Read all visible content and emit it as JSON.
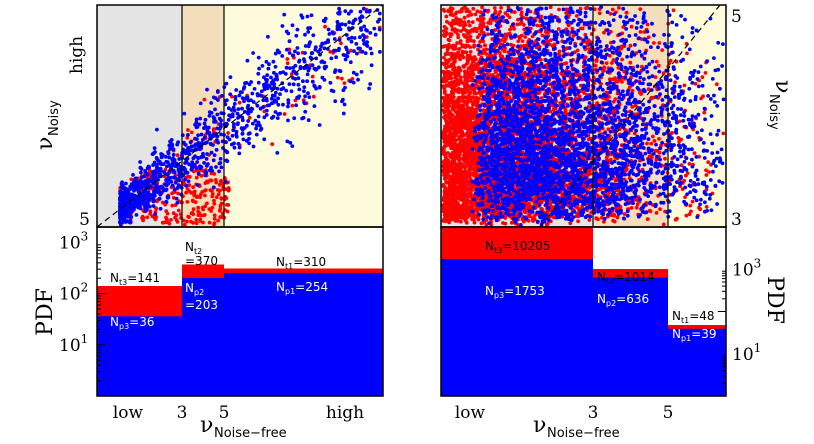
{
  "colors": {
    "bg_low": "#e5e5e5",
    "bg_mid": "#f5debb",
    "bg_high": "#fefbdd",
    "total": "#ff0000",
    "pass": "#0000ff",
    "frame": "#000000"
  },
  "chart_data": [
    {
      "type": "scatter",
      "panel": "top-left",
      "xlim": [
        "low",
        "high"
      ],
      "y_ticks": [
        {
          "label": "5"
        },
        {
          "label": "high"
        }
      ],
      "ylabel": {
        "main": "ν",
        "sub": "Noisy"
      },
      "regions": [
        {
          "name": "ν<3",
          "color": "#e5e5e5"
        },
        {
          "name": "3-5",
          "color": "#f5debb"
        },
        {
          "name": "ν>5",
          "color": "#fefbdd"
        }
      ],
      "x_breaks": [
        3,
        5
      ],
      "diagonal": "dashed",
      "series": [
        {
          "color": "#ff0000",
          "count": 370
        },
        {
          "color": "#0000ff",
          "count": 1100
        }
      ]
    },
    {
      "type": "scatter",
      "panel": "top-right",
      "y_ticks": [
        {
          "label": "3"
        },
        {
          "label": "5"
        }
      ],
      "ylabel": {
        "main": "ν",
        "sub": "Noisy"
      },
      "x_breaks": [
        3,
        5
      ],
      "diagonal": "dashed",
      "series": [
        {
          "color": "#ff0000",
          "count": 5200
        },
        {
          "color": "#0000ff",
          "count": 3400
        }
      ]
    },
    {
      "type": "bar",
      "panel": "bottom-left",
      "xlabel": {
        "main": "ν",
        "sub": "Noise−free"
      },
      "ylabel": "PDF",
      "y_scale": "log",
      "ylim": [
        1,
        2000
      ],
      "y_ticks": [
        {
          "base": "10",
          "exp": "1",
          "value": 10
        },
        {
          "base": "10",
          "exp": "2",
          "value": 100
        },
        {
          "base": "10",
          "exp": "3",
          "value": 1000
        }
      ],
      "x_ticks": [
        "low",
        "3",
        "5",
        "high"
      ],
      "bins": [
        {
          "total_label": "N",
          "total_sub": "t3",
          "total_value": "=141",
          "pass_label": "N",
          "pass_sub": "p3",
          "pass_value": "=36",
          "total": 141,
          "pass": 36
        },
        {
          "total_label": "N",
          "total_sub": "t2",
          "total_value": "=370",
          "pass_label": "N",
          "pass_sub": "p2",
          "pass_value": "=203",
          "total": 370,
          "pass": 203
        },
        {
          "total_label": "N",
          "total_sub": "t1",
          "total_value": "=310",
          "pass_label": "N",
          "pass_sub": "p1",
          "pass_value": "=254",
          "total": 310,
          "pass": 254
        }
      ]
    },
    {
      "type": "bar",
      "panel": "bottom-right",
      "xlabel": {
        "main": "ν",
        "sub": "Noise−free"
      },
      "ylabel": "PDF",
      "y_scale": "log",
      "ylim": [
        1,
        10000
      ],
      "y_ticks": [
        {
          "base": "10",
          "exp": "1",
          "value": 10
        },
        {
          "base": "10",
          "exp": "3",
          "value": 1000
        }
      ],
      "x_ticks": [
        "low",
        "3",
        "5"
      ],
      "bins": [
        {
          "total_label": "N",
          "total_sub": "t3",
          "total_value": "=10205",
          "pass_label": "N",
          "pass_sub": "p3",
          "pass_value": "=1753",
          "total": 10205,
          "pass": 1753
        },
        {
          "total_label": "N",
          "total_sub": "t2",
          "total_value": "=1014",
          "pass_label": "N",
          "pass_sub": "p2",
          "pass_value": "=636",
          "total": 1014,
          "pass": 636
        },
        {
          "total_label": "N",
          "total_sub": "t1",
          "total_value": "=48",
          "pass_label": "N",
          "pass_sub": "p1",
          "pass_value": "=39",
          "total": 48,
          "pass": 39
        }
      ]
    }
  ]
}
